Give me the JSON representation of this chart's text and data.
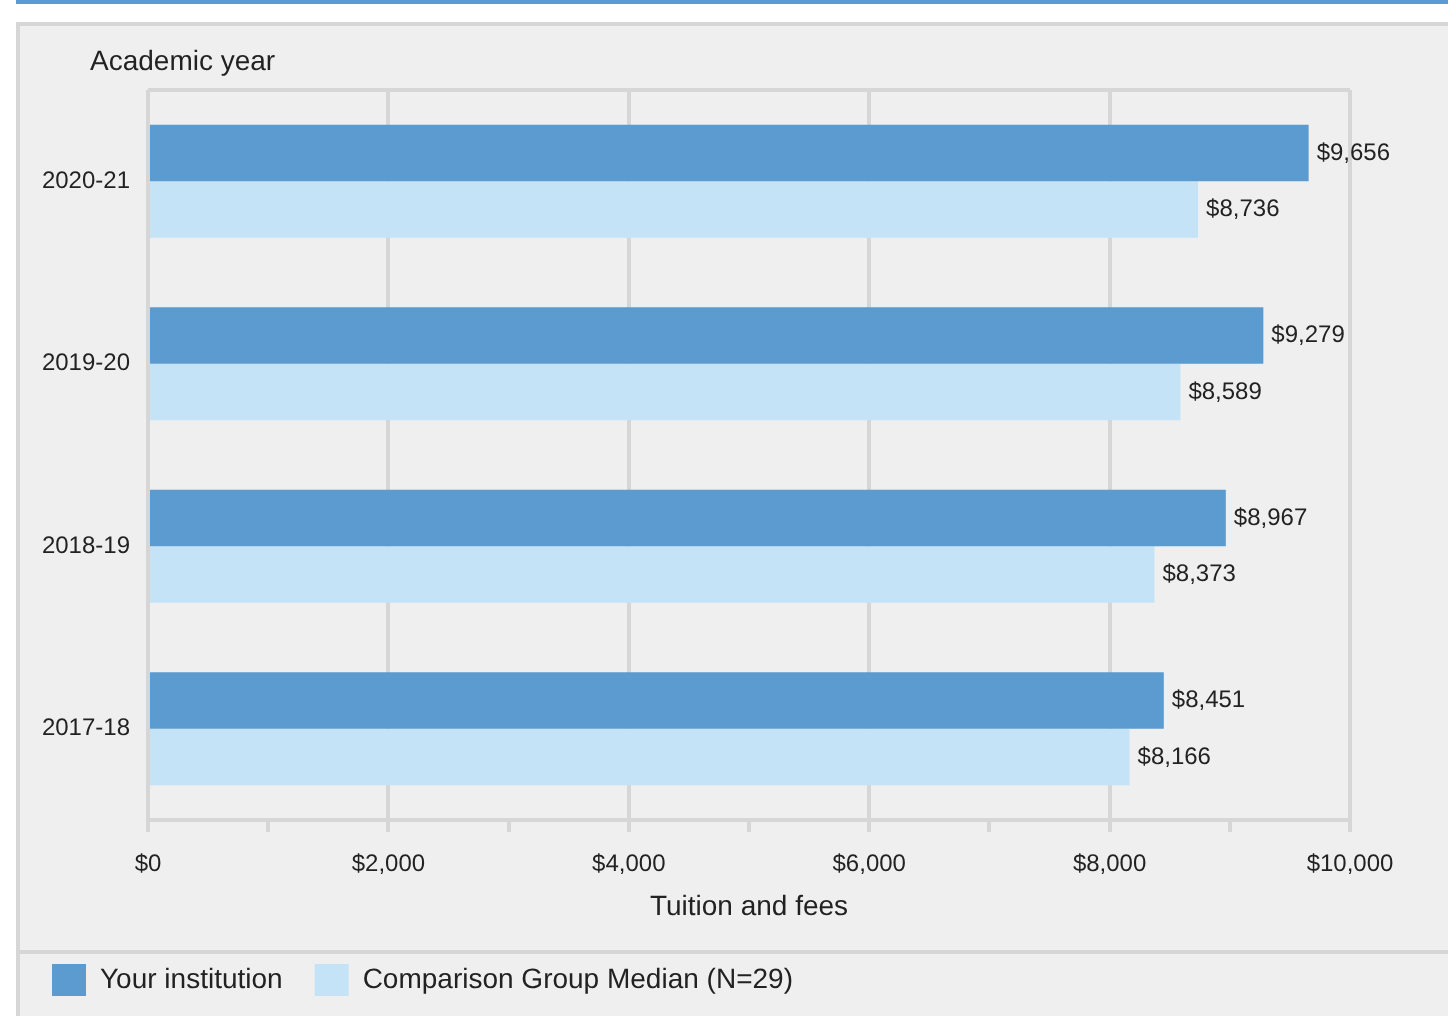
{
  "chart_data": {
    "type": "bar",
    "orientation": "horizontal",
    "ylabel": "Academic year",
    "xlabel": "Tuition and fees",
    "categories": [
      "2020-21",
      "2019-20",
      "2018-19",
      "2017-18"
    ],
    "series": [
      {
        "name": "Your institution",
        "color": "#5b9bd0",
        "values": [
          9656,
          9279,
          8967,
          8451
        ],
        "value_labels": [
          "$9,656",
          "$9,279",
          "$8,967",
          "$8,451"
        ]
      },
      {
        "name": "Comparison Group Median (N=29)",
        "color": "#c5e3f6",
        "values": [
          8736,
          8589,
          8373,
          8166
        ],
        "value_labels": [
          "$8,736",
          "$8,589",
          "$8,373",
          "$8,166"
        ]
      }
    ],
    "xlim": [
      0,
      10000
    ],
    "xticks": [
      {
        "value": 0,
        "label": "$0"
      },
      {
        "value": 1000,
        "label": null
      },
      {
        "value": 2000,
        "label": "$2,000"
      },
      {
        "value": 3000,
        "label": null
      },
      {
        "value": 4000,
        "label": "$4,000"
      },
      {
        "value": 5000,
        "label": null
      },
      {
        "value": 6000,
        "label": "$6,000"
      },
      {
        "value": 7000,
        "label": null
      },
      {
        "value": 8000,
        "label": "$8,000"
      },
      {
        "value": 9000,
        "label": null
      },
      {
        "value": 10000,
        "label": "$10,000"
      }
    ],
    "grid": "x",
    "legend": "bottom left"
  }
}
